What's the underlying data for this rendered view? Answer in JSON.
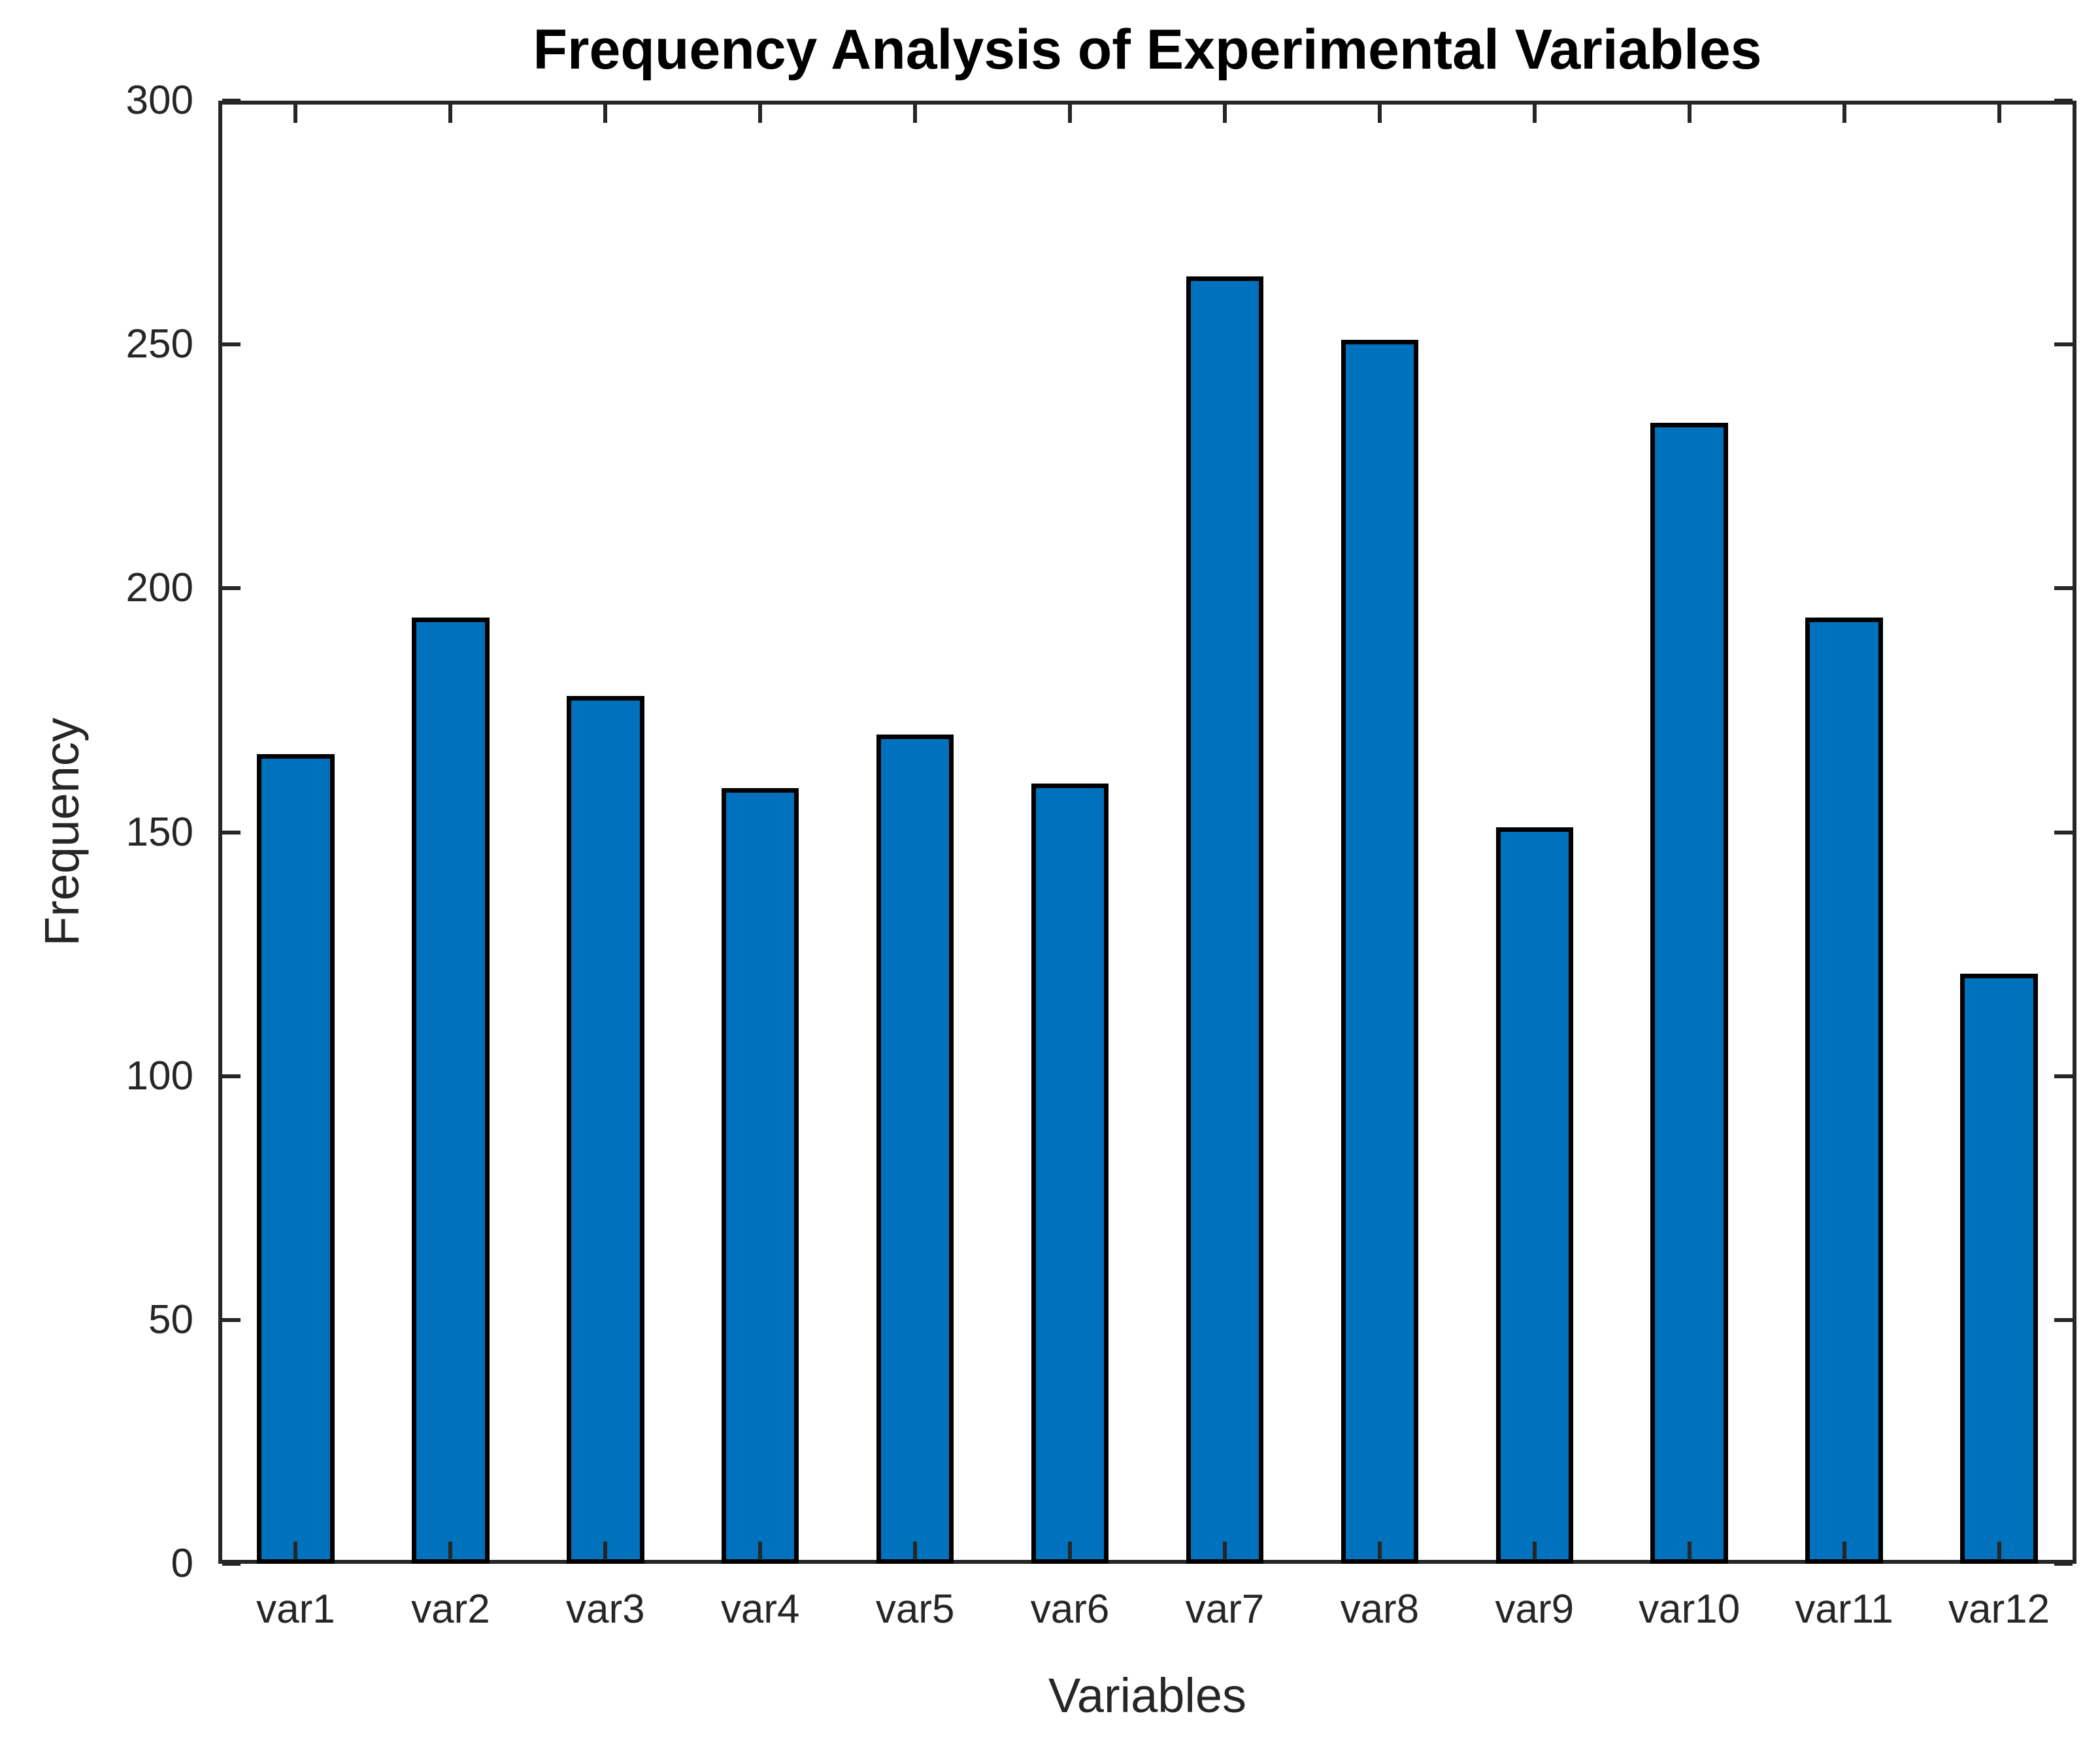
{
  "chart_data": {
    "type": "bar",
    "title": "Frequency Analysis of Experimental Variables",
    "xlabel": "Variables",
    "ylabel": "Frequency",
    "categories": [
      "var1",
      "var2",
      "var3",
      "var4",
      "var5",
      "var6",
      "var7",
      "var8",
      "var9",
      "var10",
      "var11",
      "var12"
    ],
    "values": [
      166,
      194,
      178,
      159,
      170,
      160,
      264,
      251,
      151,
      234,
      194,
      121
    ],
    "ylim": [
      0,
      300
    ],
    "yticks": [
      0,
      50,
      100,
      150,
      200,
      250,
      300
    ],
    "grid": false,
    "legend": null,
    "bar_width_fraction": 0.5,
    "tick_direction": "in",
    "bar_color": "#0072BD",
    "bar_edge_color": "#000000",
    "axis_color": "#262626",
    "text_color": "#262626",
    "title_color": "#000000",
    "background_color": "#FFFFFF"
  }
}
